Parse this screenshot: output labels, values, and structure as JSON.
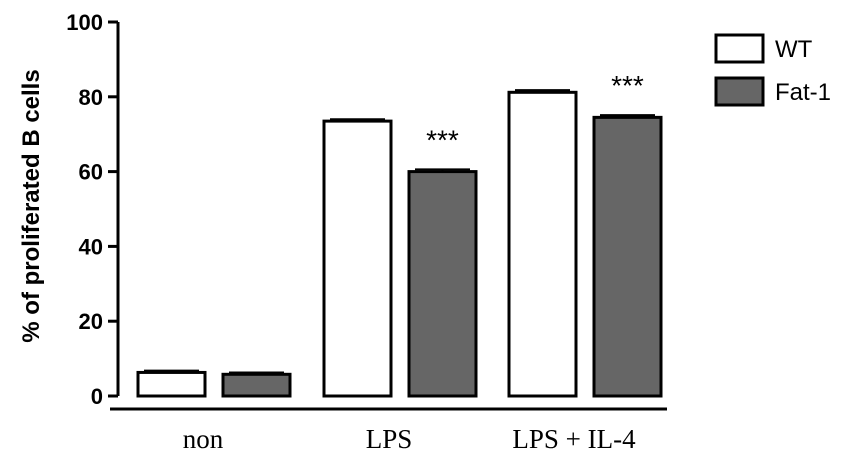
{
  "chart_data": {
    "type": "bar",
    "title": "",
    "ylabel": "% of proliferated B cells",
    "xlabel": "",
    "ylim": [
      0,
      100
    ],
    "yticks": [
      0,
      20,
      40,
      60,
      80,
      100
    ],
    "ytick_labels": [
      "0",
      "20",
      "40",
      "60",
      "80",
      "100"
    ],
    "categories": [
      "non",
      "LPS",
      "LPS + IL-4"
    ],
    "series": [
      {
        "name": "WT",
        "values": [
          6.3,
          73.5,
          81.2
        ],
        "errors": [
          0.5,
          0.5,
          0.6
        ],
        "fill": "#ffffff"
      },
      {
        "name": "Fat-1",
        "values": [
          5.8,
          60.0,
          74.5
        ],
        "errors": [
          0.5,
          0.6,
          0.6
        ],
        "fill": "#666666"
      }
    ],
    "annotations": [
      {
        "text": "***",
        "category": "LPS",
        "series": "Fat-1"
      },
      {
        "text": "***",
        "category": "LPS + IL-4",
        "series": "Fat-1"
      }
    ],
    "legend_position": "top-right",
    "grid": false
  }
}
